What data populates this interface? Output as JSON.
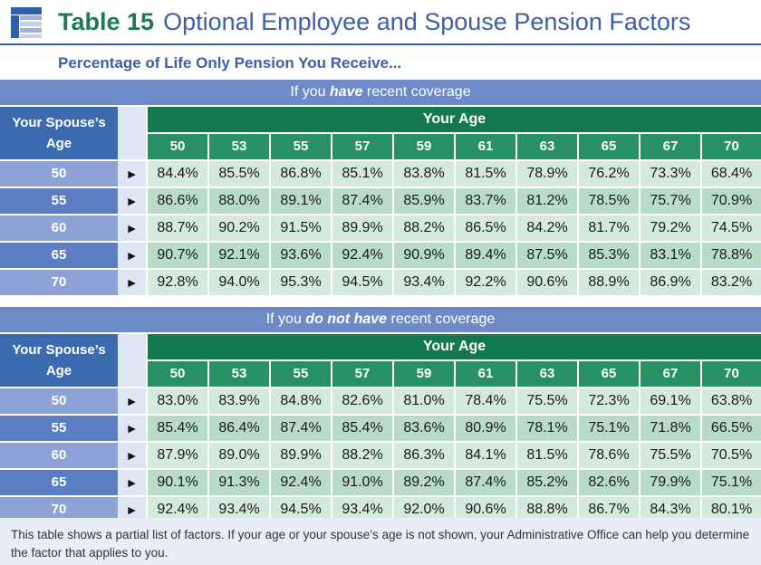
{
  "title": {
    "number": "Table 15",
    "text": "Optional Employee and Spouse Pension Factors"
  },
  "subtitle": "Percentage of Life Only Pension You Receive...",
  "spouse_header": [
    "Your Spouse’s",
    "Age"
  ],
  "your_age_label": "Your Age",
  "age_columns": [
    "50",
    "53",
    "55",
    "57",
    "59",
    "61",
    "63",
    "65",
    "67",
    "70"
  ],
  "row_arrow": "►",
  "tables": [
    {
      "banner": {
        "prefix": "If you ",
        "emphasis": "have",
        "suffix": " recent coverage"
      },
      "rows": [
        {
          "spouse_age": "50",
          "values": [
            "84.4%",
            "85.5%",
            "86.8%",
            "85.1%",
            "83.8%",
            "81.5%",
            "78.9%",
            "76.2%",
            "73.3%",
            "68.4%"
          ]
        },
        {
          "spouse_age": "55",
          "values": [
            "86.6%",
            "88.0%",
            "89.1%",
            "87.4%",
            "85.9%",
            "83.7%",
            "81.2%",
            "78.5%",
            "75.7%",
            "70.9%"
          ]
        },
        {
          "spouse_age": "60",
          "values": [
            "88.7%",
            "90.2%",
            "91.5%",
            "89.9%",
            "88.2%",
            "86.5%",
            "84.2%",
            "81.7%",
            "79.2%",
            "74.5%"
          ]
        },
        {
          "spouse_age": "65",
          "values": [
            "90.7%",
            "92.1%",
            "93.6%",
            "92.4%",
            "90.9%",
            "89.4%",
            "87.5%",
            "85.3%",
            "83.1%",
            "78.8%"
          ]
        },
        {
          "spouse_age": "70",
          "values": [
            "92.8%",
            "94.0%",
            "95.3%",
            "94.5%",
            "93.4%",
            "92.2%",
            "90.6%",
            "88.9%",
            "86.9%",
            "83.2%"
          ]
        }
      ]
    },
    {
      "banner": {
        "prefix": "If you ",
        "emphasis": "do not have",
        "suffix": " recent coverage"
      },
      "rows": [
        {
          "spouse_age": "50",
          "values": [
            "83.0%",
            "83.9%",
            "84.8%",
            "82.6%",
            "81.0%",
            "78.4%",
            "75.5%",
            "72.3%",
            "69.1%",
            "63.8%"
          ]
        },
        {
          "spouse_age": "55",
          "values": [
            "85.4%",
            "86.4%",
            "87.4%",
            "85.4%",
            "83.6%",
            "80.9%",
            "78.1%",
            "75.1%",
            "71.8%",
            "66.5%"
          ]
        },
        {
          "spouse_age": "60",
          "values": [
            "87.9%",
            "89.0%",
            "89.9%",
            "88.2%",
            "86.3%",
            "84.1%",
            "81.5%",
            "78.6%",
            "75.5%",
            "70.5%"
          ]
        },
        {
          "spouse_age": "65",
          "values": [
            "90.1%",
            "91.3%",
            "92.4%",
            "91.0%",
            "89.2%",
            "87.4%",
            "85.2%",
            "82.6%",
            "79.9%",
            "75.1%"
          ]
        },
        {
          "spouse_age": "70",
          "values": [
            "92.4%",
            "93.4%",
            "94.5%",
            "93.4%",
            "92.0%",
            "90.6%",
            "88.8%",
            "86.7%",
            "84.3%",
            "80.1%"
          ]
        }
      ]
    }
  ],
  "footnote": "This table shows a partial list of factors. If your age or your spouse’s age is not shown, your Administrative Office can help you determine the factor that applies to you."
}
